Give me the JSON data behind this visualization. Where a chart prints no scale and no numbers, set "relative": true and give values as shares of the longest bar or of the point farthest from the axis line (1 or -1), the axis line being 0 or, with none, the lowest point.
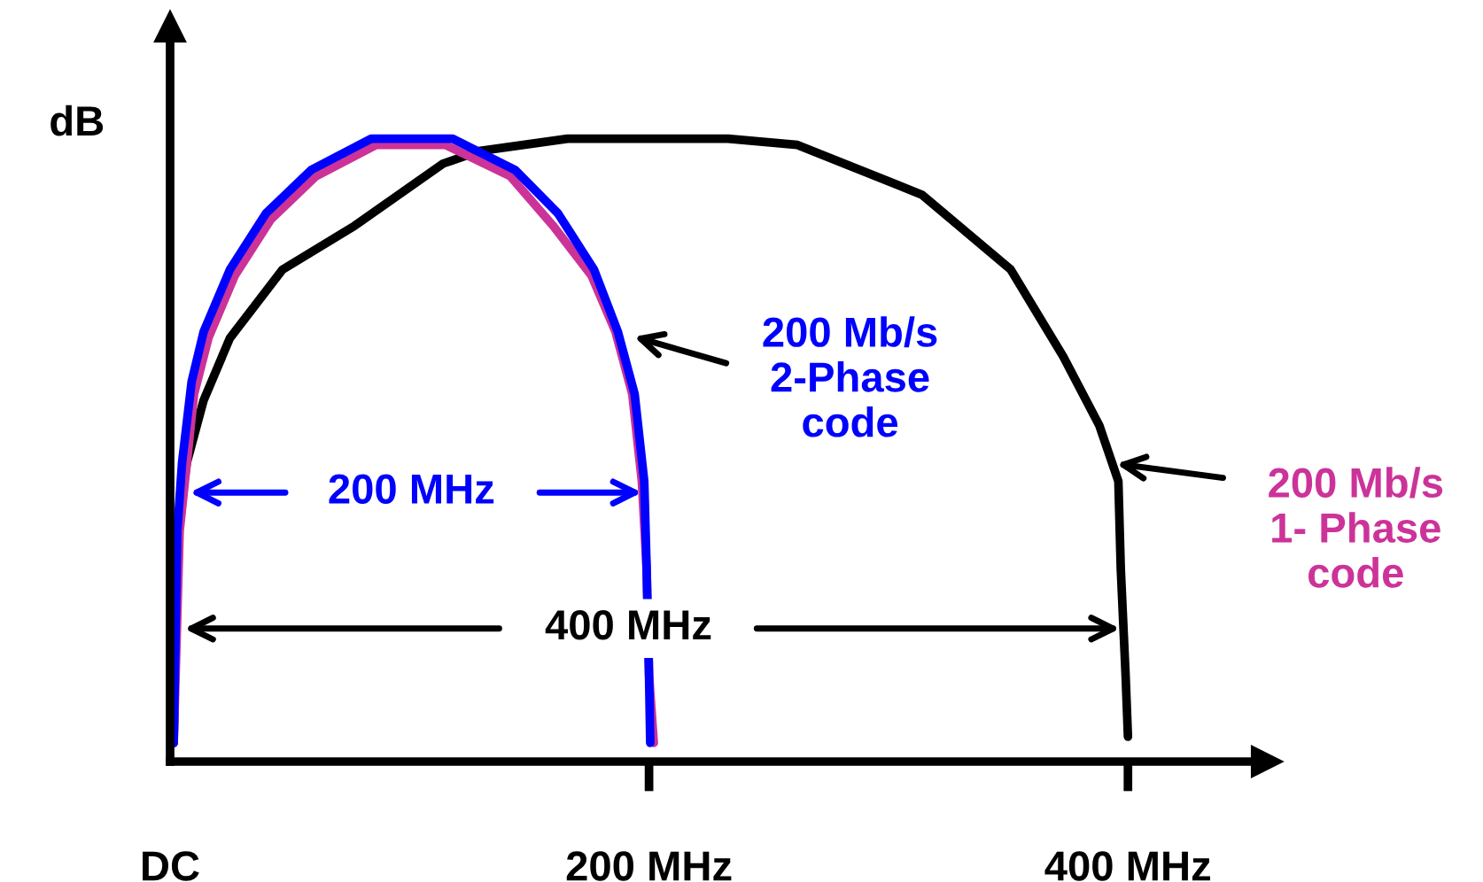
{
  "chart_data": {
    "type": "line",
    "relative": true,
    "ylabel": "dB",
    "xlim": [
      0,
      458
    ],
    "xticks": [
      {
        "value": 0,
        "label": "DC"
      },
      {
        "value": 200,
        "label": "200 MHz"
      },
      {
        "value": 400,
        "label": "400 MHz"
      }
    ],
    "grid": false,
    "legend": false,
    "marker": "none",
    "line_style": "solid",
    "series": [
      {
        "color": "#000000",
        "x": [
          1.5,
          3,
          7,
          14,
          25,
          47,
          77,
          114,
          129,
          166,
          233,
          262,
          314,
          351,
          373,
          388,
          396,
          397,
          399,
          400
        ],
        "values": [
          0.03,
          0.37,
          0.48,
          0.58,
          0.68,
          0.79,
          0.86,
          0.96,
          0.98,
          1.0,
          1.0,
          0.99,
          0.91,
          0.79,
          0.65,
          0.54,
          0.45,
          0.31,
          0.14,
          0.04
        ]
      },
      {
        "color": "#cc3399",
        "x": [
          1.5,
          4,
          7,
          10,
          16,
          27,
          42,
          61,
          86,
          115,
          142,
          160,
          176,
          186,
          193,
          197,
          199,
          200,
          202
        ],
        "values": [
          0.03,
          0.37,
          0.48,
          0.59,
          0.68,
          0.78,
          0.87,
          0.94,
          0.99,
          0.99,
          0.94,
          0.86,
          0.78,
          0.69,
          0.59,
          0.45,
          0.31,
          0.14,
          0.03
        ]
      },
      {
        "color": "#0000ff",
        "x": [
          1.5,
          3,
          5,
          9,
          14,
          25,
          40,
          59,
          84,
          118,
          144,
          162,
          177,
          187,
          194,
          198,
          199,
          200,
          200.5
        ],
        "values": [
          0.03,
          0.37,
          0.48,
          0.61,
          0.69,
          0.79,
          0.88,
          0.95,
          1.0,
          1.0,
          0.95,
          0.88,
          0.79,
          0.69,
          0.59,
          0.45,
          0.31,
          0.14,
          0.03
        ]
      }
    ],
    "annotations": [
      "200 Mb/s\n2-Phase\ncode",
      "200 Mb/s\n1- Phase\ncode",
      "200 MHz",
      "400 MHz"
    ]
  }
}
